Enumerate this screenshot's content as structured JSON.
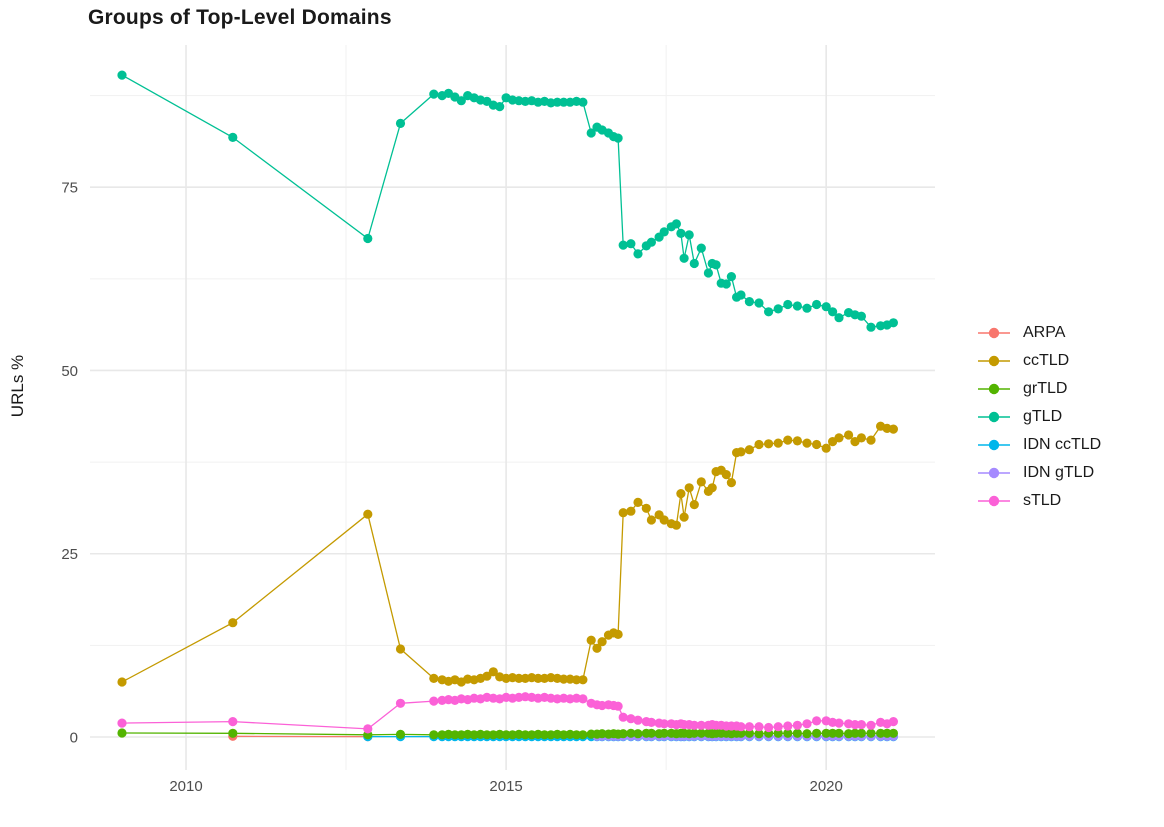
{
  "title": "Groups of Top-Level Domains",
  "chart_data": {
    "type": "scatter",
    "title": "Groups of Top-Level Domains",
    "xlabel": "",
    "ylabel": "URLs %",
    "grid": true,
    "legend_position": "right",
    "x_range": [
      2008.5,
      2021.7
    ],
    "y_range": [
      -4.5,
      94.4
    ],
    "x_ticks_major": [
      2010,
      2015,
      2020
    ],
    "x_tick_labels": [
      "2010",
      "2015",
      "2020"
    ],
    "x_ticks_minor": [
      2012.5,
      2017.5
    ],
    "y_ticks_major": [
      0,
      25,
      50,
      75
    ],
    "y_tick_labels": [
      "0",
      "25",
      "50",
      "75"
    ],
    "y_ticks_minor": [
      12.5,
      37.5,
      62.5,
      87.5
    ],
    "grid_major_color": "#e8e8e8",
    "grid_minor_color": "#f1f1f1",
    "draw_order": [
      0,
      4,
      5,
      2,
      1,
      3,
      6
    ],
    "x_grid": [
      2009.0,
      2010.73,
      2012.84,
      2013.35,
      2013.87,
      2014.0,
      2014.1,
      2014.2,
      2014.3,
      2014.4,
      2014.5,
      2014.6,
      2014.7,
      2014.8,
      2014.9,
      2015.0,
      2015.1,
      2015.2,
      2015.3,
      2015.4,
      2015.5,
      2015.6,
      2015.7,
      2015.8,
      2015.9,
      2016.0,
      2016.1,
      2016.2,
      2016.33,
      2016.42,
      2016.5,
      2016.6,
      2016.68,
      2016.75,
      2016.83,
      2016.95,
      2017.06,
      2017.19,
      2017.27,
      2017.39,
      2017.47,
      2017.58,
      2017.66,
      2017.73,
      2017.78,
      2017.86,
      2017.94,
      2018.05,
      2018.16,
      2018.22,
      2018.28,
      2018.36,
      2018.44,
      2018.52,
      2018.6,
      2018.67,
      2018.8,
      2018.95,
      2019.1,
      2019.25,
      2019.4,
      2019.55,
      2019.7,
      2019.85,
      2020.0,
      2020.1,
      2020.2,
      2020.35,
      2020.45,
      2020.55,
      2020.7,
      2020.85,
      2020.95,
      2021.05
    ],
    "series": [
      {
        "name": "ARPA",
        "color": "#F8766D",
        "x_from": 1,
        "y": [
          0.1,
          0.05
        ]
      },
      {
        "name": "ccTLD",
        "color": "#C49A00",
        "x_from": 0,
        "y": [
          7.5,
          15.6,
          30.4,
          12.0,
          8.0,
          7.8,
          7.6,
          7.8,
          7.5,
          7.9,
          7.8,
          8.0,
          8.3,
          8.9,
          8.2,
          8.0,
          8.1,
          8.0,
          8.0,
          8.1,
          8.0,
          8.0,
          8.1,
          8.0,
          7.9,
          7.9,
          7.8,
          7.8,
          13.2,
          12.1,
          13.0,
          13.9,
          14.2,
          14.0,
          30.6,
          30.8,
          32.0,
          31.2,
          29.6,
          30.3,
          29.6,
          29.1,
          28.9,
          33.2,
          30.0,
          34.0,
          31.7,
          34.8,
          33.5,
          34.0,
          36.2,
          36.4,
          35.8,
          34.7,
          38.8,
          38.9,
          39.2,
          39.9,
          40.0,
          40.1,
          40.5,
          40.4,
          40.1,
          39.9,
          39.4,
          40.3,
          40.8,
          41.2,
          40.3,
          40.8,
          40.5,
          42.4,
          42.1,
          42.0
        ]
      },
      {
        "name": "grTLD",
        "color": "#53B400",
        "x_from": 0,
        "y": [
          0.55,
          0.5,
          0.3,
          0.35,
          0.3,
          0.3,
          0.35,
          0.3,
          0.3,
          0.35,
          0.3,
          0.35,
          0.3,
          0.3,
          0.35,
          0.3,
          0.3,
          0.35,
          0.3,
          0.3,
          0.35,
          0.3,
          0.3,
          0.35,
          0.3,
          0.35,
          0.3,
          0.3,
          0.4,
          0.4,
          0.45,
          0.4,
          0.45,
          0.4,
          0.45,
          0.5,
          0.45,
          0.5,
          0.5,
          0.45,
          0.5,
          0.5,
          0.45,
          0.5,
          0.5,
          0.45,
          0.5,
          0.5,
          0.5,
          0.45,
          0.5,
          0.5,
          0.5,
          0.45,
          0.5,
          0.5,
          0.5,
          0.45,
          0.5,
          0.5,
          0.5,
          0.5,
          0.45,
          0.5,
          0.5,
          0.5,
          0.5,
          0.45,
          0.5,
          0.5,
          0.5,
          0.5,
          0.5,
          0.5
        ]
      },
      {
        "name": "gTLD",
        "color": "#00C094",
        "x_from": 0,
        "y": [
          90.3,
          81.8,
          68.0,
          83.7,
          87.7,
          87.5,
          87.8,
          87.3,
          86.8,
          87.5,
          87.2,
          86.9,
          86.7,
          86.2,
          86.0,
          87.2,
          86.9,
          86.8,
          86.7,
          86.8,
          86.6,
          86.7,
          86.5,
          86.6,
          86.6,
          86.6,
          86.7,
          86.6,
          82.4,
          83.2,
          82.8,
          82.4,
          81.9,
          81.7,
          67.1,
          67.3,
          65.9,
          67.0,
          67.5,
          68.2,
          68.9,
          69.6,
          70.0,
          68.7,
          65.3,
          68.5,
          64.6,
          66.7,
          63.3,
          64.6,
          64.4,
          61.9,
          61.8,
          62.8,
          60.0,
          60.3,
          59.4,
          59.2,
          58.0,
          58.4,
          59.0,
          58.8,
          58.5,
          59.0,
          58.7,
          58.0,
          57.2,
          57.9,
          57.6,
          57.4,
          55.9,
          56.1,
          56.2,
          56.5
        ]
      },
      {
        "name": "IDN ccTLD",
        "color": "#00B6EB",
        "x_from": 2,
        "y": [
          0.05,
          0.05,
          0.05,
          0.05,
          0.05,
          0.05,
          0.05,
          0.05,
          0.05,
          0.05,
          0.05,
          0.05,
          0.05,
          0.05,
          0.05,
          0.05,
          0.05,
          0.05,
          0.05,
          0.05,
          0.05,
          0.05,
          0.05,
          0.05,
          0.05,
          0.05,
          0.05,
          0.05,
          0.05,
          0.05,
          0.05,
          0.05,
          0.05,
          0.05,
          0.05,
          0.05,
          0.05,
          0.05,
          0.05,
          0.05,
          0.05,
          0.05,
          0.05,
          0.05,
          0.05,
          0.05,
          0.05,
          0.05,
          0.05,
          0.05,
          0.05,
          0.05,
          0.05,
          0.05,
          0.05,
          0.05,
          0.05,
          0.05,
          0.05,
          0.05,
          0.05,
          0.05,
          0.05,
          0.05,
          0.05,
          0.05,
          0.05,
          0.05,
          0.05,
          0.05,
          0.05,
          0.05
        ]
      },
      {
        "name": "IDN gTLD",
        "color": "#A58AFF",
        "x_from": 29,
        "y": [
          0.1,
          0.1,
          0.1,
          0.1,
          0.1,
          0.1,
          0.1,
          0.1,
          0.1,
          0.1,
          0.1,
          0.1,
          0.1,
          0.1,
          0.1,
          0.1,
          0.1,
          0.1,
          0.1,
          0.1,
          0.1,
          0.1,
          0.1,
          0.1,
          0.1,
          0.1,
          0.1,
          0.1,
          0.1,
          0.1,
          0.1,
          0.1,
          0.1,
          0.1,
          0.1,
          0.1,
          0.1,
          0.1,
          0.1,
          0.1,
          0.1,
          0.1,
          0.1,
          0.1,
          0.1
        ]
      },
      {
        "name": "sTLD",
        "color": "#FB61D7",
        "x_from": 0,
        "y": [
          1.9,
          2.1,
          1.1,
          4.6,
          4.9,
          5.0,
          5.1,
          5.0,
          5.2,
          5.1,
          5.3,
          5.2,
          5.4,
          5.3,
          5.2,
          5.4,
          5.3,
          5.4,
          5.5,
          5.4,
          5.3,
          5.4,
          5.3,
          5.2,
          5.3,
          5.2,
          5.3,
          5.2,
          4.6,
          4.4,
          4.3,
          4.4,
          4.3,
          4.2,
          2.7,
          2.5,
          2.3,
          2.1,
          2.0,
          1.9,
          1.8,
          1.8,
          1.7,
          1.8,
          1.7,
          1.7,
          1.6,
          1.6,
          1.6,
          1.7,
          1.6,
          1.6,
          1.5,
          1.5,
          1.5,
          1.4,
          1.4,
          1.4,
          1.3,
          1.4,
          1.5,
          1.6,
          1.8,
          2.2,
          2.2,
          2.0,
          1.9,
          1.8,
          1.7,
          1.7,
          1.6,
          2.0,
          1.8,
          2.1
        ]
      }
    ]
  }
}
